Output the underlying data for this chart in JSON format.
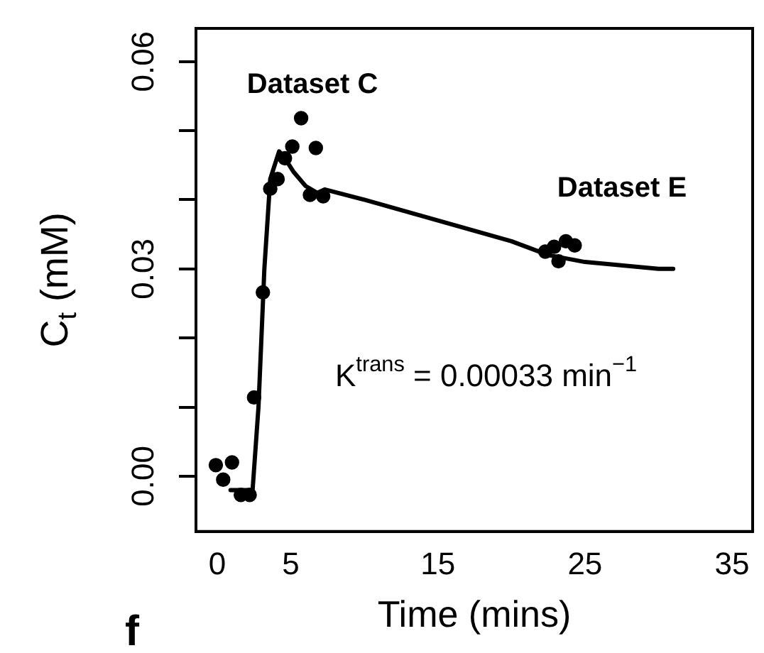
{
  "chart_data": {
    "type": "scatter",
    "xlabel": "Time (mins)",
    "ylabel": "C$_{t}$ (mM)",
    "xlim": [
      -1.45,
      36.4
    ],
    "ylim": [
      -0.008,
      0.0648
    ],
    "xticks": [
      0,
      5,
      15,
      25,
      35
    ],
    "yticks": [
      {
        "value": 0,
        "label": "0.00"
      },
      {
        "value": 0.01,
        "label": null
      },
      {
        "value": 0.02,
        "label": null
      },
      {
        "value": 0.03,
        "label": "0.03"
      },
      {
        "value": 0.04,
        "label": null
      },
      {
        "value": 0.05,
        "label": null
      },
      {
        "value": 0.06,
        "label": "0.06"
      }
    ],
    "series": [
      {
        "type": "scatter",
        "color": "#000000",
        "marker": "circle",
        "x": [
          -0.1,
          0.4,
          1.0,
          1.6,
          2.2,
          2.5,
          3.1,
          3.6,
          4.1,
          4.6,
          5.1,
          5.7,
          6.3,
          6.7,
          7.2,
          22.3,
          22.9,
          23.2,
          23.7,
          24.3
        ],
        "values": [
          0.0016,
          -0.0005,
          0.002,
          -0.0027,
          -0.0027,
          0.0114,
          0.0266,
          0.0416,
          0.043,
          0.046,
          0.0477,
          0.0518,
          0.0407,
          0.0475,
          0.0405,
          0.0325,
          0.0332,
          0.0311,
          0.034,
          0.0334
        ]
      },
      {
        "type": "line",
        "color": "#000000",
        "marker": "none",
        "line_style": "solid",
        "x": [
          0.9,
          2.4,
          2.8,
          3.2,
          3.6,
          4.2,
          4.6,
          5.2,
          6.0,
          6.8,
          7.3,
          10,
          15,
          20,
          22.5,
          25,
          30,
          31
        ],
        "values": [
          -0.002,
          -0.002,
          0.01,
          0.03,
          0.043,
          0.047,
          0.046,
          0.044,
          0.042,
          0.041,
          0.0415,
          0.04,
          0.037,
          0.034,
          0.032,
          0.031,
          0.03,
          0.03
        ]
      }
    ],
    "annotations": [
      "Dataset C",
      "Dataset E",
      "K$^{trans}$ = 0.00033 min$^{−1}$",
      "f"
    ]
  }
}
